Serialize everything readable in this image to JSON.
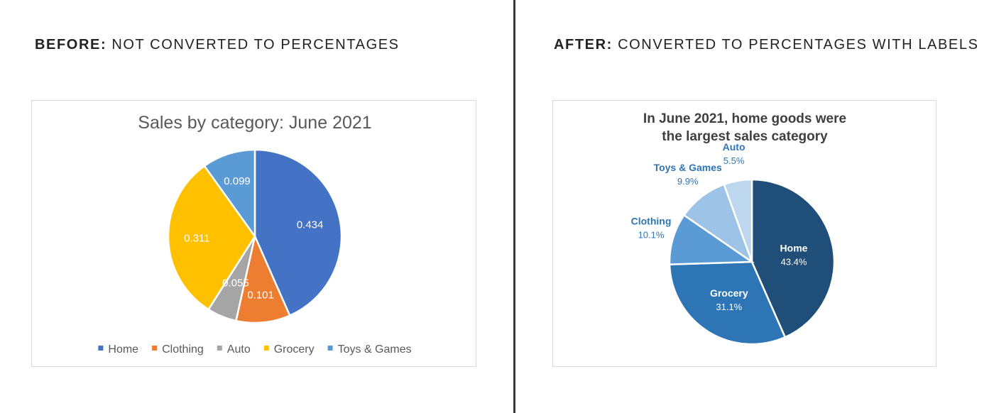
{
  "left_panel": {
    "heading_bold": "BEFORE:",
    "heading_rest": " NOT CONVERTED TO PERCENTAGES"
  },
  "right_panel": {
    "heading_bold": "AFTER:",
    "heading_rest": " CONVERTED TO PERCENTAGES WITH LABELS"
  },
  "chart_data": [
    {
      "type": "pie",
      "title": "Sales by category: June 2021",
      "categories": [
        "Home",
        "Clothing",
        "Auto",
        "Grocery",
        "Toys & Games"
      ],
      "values": [
        0.434,
        0.101,
        0.055,
        0.311,
        0.099
      ],
      "data_labels": [
        "0.434",
        "0.101",
        "0.055",
        "0.311",
        "0.099"
      ],
      "colors": [
        "#4472c4",
        "#ed7d31",
        "#a5a5a5",
        "#ffc000",
        "#5b9bd5"
      ],
      "legend": {
        "position": "bottom",
        "entries": [
          "Home",
          "Clothing",
          "Auto",
          "Grocery",
          "Toys & Games"
        ]
      }
    },
    {
      "type": "pie",
      "title_lines": [
        "In June 2021, home goods were",
        "the largest sales category"
      ],
      "categories": [
        "Home",
        "Grocery",
        "Clothing",
        "Toys & Games",
        "Auto"
      ],
      "values": [
        43.4,
        31.1,
        10.1,
        9.9,
        5.5
      ],
      "data_labels": [
        "43.4%",
        "31.1%",
        "10.1%",
        "9.9%",
        "5.5%"
      ],
      "colors": [
        "#1f4e79",
        "#2e75b6",
        "#5b9bd5",
        "#9dc3e6",
        "#bdd7ee"
      ],
      "label_colors": [
        "#ffffff",
        "#ffffff",
        "#2e75b6",
        "#2e75b6",
        "#2e75b6"
      ]
    }
  ]
}
